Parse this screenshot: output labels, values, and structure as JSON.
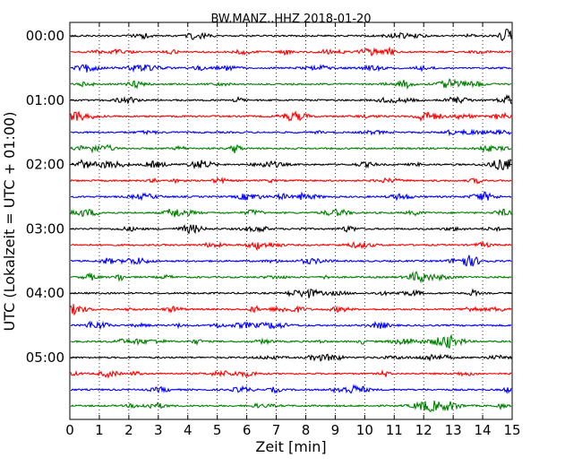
{
  "chart_data": {
    "type": "line",
    "title": "BW.MANZ..HHZ 2018-01-20",
    "xlabel": "Zeit  [min]",
    "ylabel": "UTC (Lokalzeit = UTC + 01:00)",
    "xlim": [
      0,
      15
    ],
    "x_ticks": [
      "0",
      "1",
      "2",
      "3",
      "4",
      "5",
      "6",
      "7",
      "8",
      "9",
      "10",
      "11",
      "12",
      "13",
      "14",
      "15"
    ],
    "y_tick_labels": [
      "00:00",
      "01:00",
      "02:00",
      "03:00",
      "04:00",
      "05:00"
    ],
    "trace_interval_min": 15,
    "trace_count": 24,
    "trace_colors": [
      "#000000",
      "#ff0000",
      "#0000ff",
      "#008000"
    ],
    "grid": "vertical dotted",
    "legend": "none"
  }
}
